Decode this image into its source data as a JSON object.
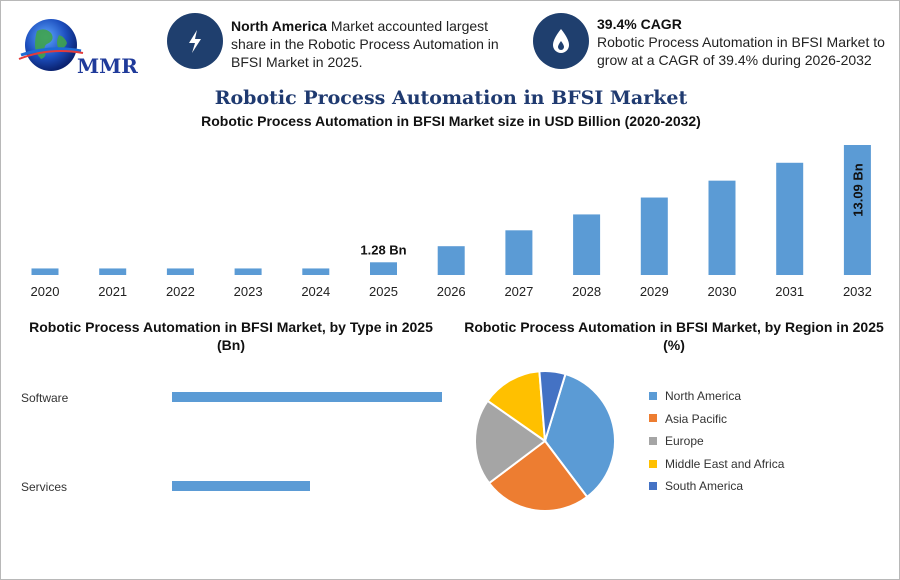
{
  "header": {
    "logo_text": "MMR",
    "kpi1": {
      "bold": "North America",
      "text": " Market accounted largest share in the Robotic Process Automation in BFSI Market in 2025.",
      "icon": "lightning-icon"
    },
    "kpi2": {
      "bold": "39.4% CAGR",
      "text": "Robotic Process Automation in BFSI Market to grow at a CAGR of 39.4% during 2026-2032",
      "icon": "flame-icon"
    }
  },
  "main_title": "Robotic Process Automation in BFSI Market",
  "colors": {
    "bar": "#5b9bd5",
    "accent_dark": "#1f3f6e",
    "title": "#1f3a70"
  },
  "chart_data": [
    {
      "type": "bar",
      "title": "Robotic Process Automation in BFSI Market size in USD Billion (2020-2032)",
      "categories": [
        "2020",
        "2021",
        "2022",
        "2023",
        "2024",
        "2025",
        "2026",
        "2027",
        "2028",
        "2029",
        "2030",
        "2031",
        "2032"
      ],
      "values": [
        0.66,
        0.66,
        0.66,
        0.66,
        0.66,
        1.28,
        2.9,
        4.5,
        6.1,
        7.8,
        9.5,
        11.3,
        13.09
      ],
      "data_labels": [
        {
          "index": 5,
          "text": "1.28 Bn"
        },
        {
          "index": 12,
          "text": "13.09 Bn"
        }
      ],
      "ylim": [
        0,
        13.09
      ],
      "grid": false
    },
    {
      "type": "bar",
      "orientation": "horizontal",
      "title": "Robotic Process Automation in BFSI Market, by Type in 2025 (Bn)",
      "categories": [
        "Software",
        "Services"
      ],
      "values": [
        0.82,
        0.42
      ],
      "xlim": [
        0,
        0.82
      ],
      "grid": false
    },
    {
      "type": "pie",
      "title": "Robotic Process Automation in BFSI Market, by Region in 2025 (%)",
      "labels": [
        "North America",
        "Asia Pacific",
        "Europe",
        "Middle East and Africa",
        "South America"
      ],
      "values": [
        35,
        25,
        20,
        14,
        6
      ],
      "colors": [
        "#5b9bd5",
        "#ed7d31",
        "#a5a5a5",
        "#ffc000",
        "#4472c4"
      ],
      "legend_position": "right"
    }
  ]
}
